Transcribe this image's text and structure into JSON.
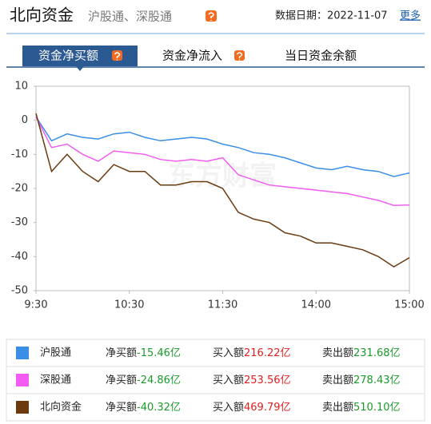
{
  "header": {
    "title": "北向资金",
    "subtitle": "沪股通、深股通",
    "date": "数据日期：2022-11-07",
    "more": "更多"
  },
  "tabs": [
    "资金净买额",
    "资金净流入",
    "当日资金余额"
  ],
  "watermark": "东方财富",
  "chart_data": {
    "type": "line",
    "x": [
      0,
      10,
      20,
      30,
      40,
      50,
      60,
      70,
      80,
      90,
      100,
      110,
      120,
      130,
      140,
      150,
      160,
      170,
      180,
      190,
      200,
      210,
      220,
      230,
      240
    ],
    "xlim": [
      0,
      240
    ],
    "xticks": [
      {
        "value": 0,
        "label": "9:30"
      },
      {
        "value": 60,
        "label": "10:30"
      },
      {
        "value": 120,
        "label": "11:30"
      },
      {
        "value": 180,
        "label": "14:00"
      },
      {
        "value": 240,
        "label": "15:00"
      }
    ],
    "ylim": [
      -50,
      10
    ],
    "yticks": [
      10,
      0,
      -10,
      -20,
      -30,
      -40,
      -50
    ],
    "grid": false,
    "series": [
      {
        "name": "沪股通",
        "color": "#3a8ee6",
        "values": [
          1,
          -6,
          -4,
          -5,
          -5.5,
          -4,
          -3.5,
          -5,
          -6,
          -5.5,
          -5,
          -5.5,
          -7,
          -8,
          -9.5,
          -10,
          -11,
          -12.5,
          -14,
          -14.5,
          -13.5,
          -14.5,
          -15,
          -16.5,
          -15.46
        ]
      },
      {
        "name": "深股通",
        "color": "#f25cf2",
        "values": [
          1,
          -8,
          -7,
          -10,
          -12,
          -9,
          -9.5,
          -10,
          -11.5,
          -12,
          -11.5,
          -12,
          -11,
          -16,
          -17.5,
          -19,
          -19.5,
          -20,
          -20.5,
          -21,
          -21.5,
          -22.5,
          -23.5,
          -25,
          -24.86
        ]
      },
      {
        "name": "北向资金",
        "color": "#6b3a0f",
        "values": [
          2,
          -15,
          -10,
          -15,
          -18,
          -13,
          -15,
          -15,
          -19,
          -19,
          -18,
          -18,
          -20,
          -27,
          -29,
          -30,
          -33,
          -34,
          -36,
          -36,
          -37,
          -38,
          -40,
          -43,
          -40.32
        ]
      }
    ]
  },
  "summary": {
    "rows": [
      {
        "net_label": "净买额",
        "net": "-15.46亿",
        "buy_label": "买入额",
        "buy": "216.22亿",
        "sell_label": "卖出额",
        "sell": "231.68亿"
      },
      {
        "net_label": "净买额",
        "net": "-24.86亿",
        "buy_label": "买入额",
        "buy": "253.56亿",
        "sell_label": "卖出额",
        "sell": "278.43亿"
      },
      {
        "net_label": "净买额",
        "net": "-40.32亿",
        "buy_label": "买入额",
        "buy": "469.79亿",
        "sell_label": "卖出额",
        "sell": "510.10亿"
      }
    ]
  }
}
